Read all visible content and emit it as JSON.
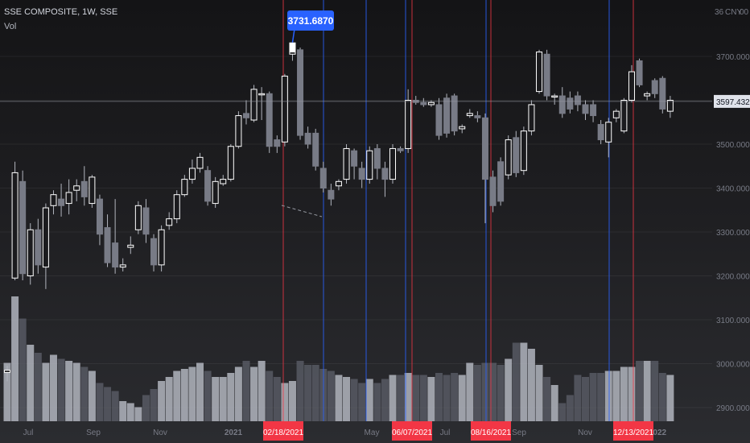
{
  "header": {
    "symbol_title": "SSE COMPOSITE, 1W, SSE",
    "volume_label": "Vol"
  },
  "price_axis": {
    "currency": "CNY",
    "currency_prefix": "36",
    "currency_suffix": "00",
    "ticks": [
      "3700.0000",
      "3600.0000",
      "3500.0000",
      "3400.0000",
      "3300.0000",
      "3200.0000",
      "3100.0000",
      "3000.0000",
      "2900.0000"
    ],
    "crosshair_value": "3597.4321"
  },
  "peak_tooltip": "3731.6870",
  "time_axis": {
    "labels": [
      "Jul",
      "Sep",
      "Nov",
      "2021",
      "May",
      "Jul",
      "Sep",
      "Nov",
      "2022"
    ],
    "date_tags": [
      "02/18/2021",
      "06/07/2021",
      "08/16/2021",
      "12/13/2021"
    ]
  },
  "colors": {
    "background": "#161618",
    "candle_up": "#ffffff",
    "candle_down": "#787b86",
    "wick": "#b2b5be",
    "volume_up": "#b2b5be",
    "volume_down": "#5d606b",
    "blue_line": "#2962ff",
    "red_line": "#f23645",
    "date_tag": "#f23645",
    "tooltip": "#2962ff"
  },
  "chart_data": {
    "type": "candlestick",
    "title": "SSE COMPOSITE, 1W, SSE",
    "ylim": [
      2880,
      3760
    ],
    "peak": 3731.687,
    "crosshair": 3597.4321,
    "series": [
      {
        "d": "Jun 2020",
        "o": 2980,
        "c": 2985,
        "h": 2995,
        "l": 2960
      },
      {
        "d": "Jul 2020",
        "o": 3195,
        "c": 3435,
        "h": 3460,
        "l": 3190
      },
      {
        "d": "Jul 2020",
        "o": 3415,
        "c": 3205,
        "h": 3440,
        "l": 3190
      },
      {
        "d": "Jul 2020",
        "o": 3200,
        "c": 3305,
        "h": 3320,
        "l": 3180
      },
      {
        "d": "Jul 2020",
        "o": 3305,
        "c": 3225,
        "h": 3330,
        "l": 3205
      },
      {
        "d": "Jul 2020",
        "o": 3220,
        "c": 3355,
        "h": 3365,
        "l": 3170
      },
      {
        "d": "Aug 2020",
        "o": 3360,
        "c": 3385,
        "h": 3395,
        "l": 3340
      },
      {
        "d": "Aug 2020",
        "o": 3375,
        "c": 3360,
        "h": 3410,
        "l": 3335
      },
      {
        "d": "Aug 2020",
        "o": 3365,
        "c": 3390,
        "h": 3420,
        "l": 3340
      },
      {
        "d": "Aug 2020",
        "o": 3395,
        "c": 3405,
        "h": 3420,
        "l": 3370
      },
      {
        "d": "Sep 2020",
        "o": 3415,
        "c": 3380,
        "h": 3450,
        "l": 3360
      },
      {
        "d": "Sep 2020",
        "o": 3365,
        "c": 3425,
        "h": 3430,
        "l": 3355
      },
      {
        "d": "Sep 2020",
        "o": 3375,
        "c": 3295,
        "h": 3385,
        "l": 3270
      },
      {
        "d": "Sep 2020",
        "o": 3310,
        "c": 3230,
        "h": 3340,
        "l": 3220
      },
      {
        "d": "Oct 2020",
        "o": 3275,
        "c": 3220,
        "h": 3375,
        "l": 3205
      },
      {
        "d": "Oct 2020",
        "o": 3220,
        "c": 3225,
        "h": 3240,
        "l": 3210
      },
      {
        "d": "Oct 2020",
        "o": 3265,
        "c": 3270,
        "h": 3290,
        "l": 3250
      },
      {
        "d": "Oct 2020",
        "o": 3305,
        "c": 3360,
        "h": 3370,
        "l": 3295
      },
      {
        "d": "Nov 2020",
        "o": 3355,
        "c": 3295,
        "h": 3375,
        "l": 3275
      },
      {
        "d": "Nov 2020",
        "o": 3285,
        "c": 3225,
        "h": 3295,
        "l": 3210
      },
      {
        "d": "Nov 2020",
        "o": 3225,
        "c": 3305,
        "h": 3315,
        "l": 3210
      },
      {
        "d": "Nov 2020",
        "o": 3315,
        "c": 3330,
        "h": 3345,
        "l": 3305
      },
      {
        "d": "Dec 2020",
        "o": 3330,
        "c": 3385,
        "h": 3395,
        "l": 3320
      },
      {
        "d": "Dec 2020",
        "o": 3385,
        "c": 3420,
        "h": 3430,
        "l": 3380
      },
      {
        "d": "Dec 2020",
        "o": 3420,
        "c": 3445,
        "h": 3465,
        "l": 3410
      },
      {
        "d": "Dec 2020",
        "o": 3445,
        "c": 3470,
        "h": 3480,
        "l": 3435
      },
      {
        "d": "Jan 2021",
        "o": 3440,
        "c": 3370,
        "h": 3450,
        "l": 3360
      },
      {
        "d": "Jan 2021",
        "o": 3365,
        "c": 3415,
        "h": 3425,
        "l": 3355
      },
      {
        "d": "Jan 2021",
        "o": 3410,
        "c": 3420,
        "h": 3430,
        "l": 3405
      },
      {
        "d": "Jan 2021",
        "o": 3420,
        "c": 3495,
        "h": 3500,
        "l": 3415
      },
      {
        "d": "Feb 2021",
        "o": 3495,
        "c": 3565,
        "h": 3575,
        "l": 3490
      },
      {
        "d": "Feb 2021",
        "o": 3570,
        "c": 3560,
        "h": 3600,
        "l": 3545
      },
      {
        "d": "Feb 2021",
        "o": 3555,
        "c": 3625,
        "h": 3635,
        "l": 3550
      },
      {
        "d": "Feb 2021",
        "o": 3615,
        "c": 3615,
        "h": 3630,
        "l": 3555
      },
      {
        "d": "Mar 2021",
        "o": 3615,
        "c": 3495,
        "h": 3620,
        "l": 3480
      },
      {
        "d": "Mar 2021",
        "o": 3510,
        "c": 3495,
        "h": 3520,
        "l": 3480
      },
      {
        "d": "Mar 2021",
        "o": 3505,
        "c": 3655,
        "h": 3660,
        "l": 3495
      },
      {
        "d": "Mar 2021",
        "o": 3705,
        "c": 3710,
        "h": 3731.687,
        "l": 3690
      },
      {
        "d": "Mar 2021",
        "o": 3715,
        "c": 3520,
        "h": 3720,
        "l": 3510
      },
      {
        "d": "Apr 2021",
        "o": 3525,
        "c": 3500,
        "h": 3540,
        "l": 3490
      },
      {
        "d": "Apr 2021",
        "o": 3525,
        "c": 3450,
        "h": 3535,
        "l": 3440
      },
      {
        "d": "Apr 2021",
        "o": 3445,
        "c": 3400,
        "h": 3460,
        "l": 3390
      },
      {
        "d": "Apr 2021",
        "o": 3395,
        "c": 3375,
        "h": 3410,
        "l": 3360
      },
      {
        "d": "May 2021",
        "o": 3405,
        "c": 3415,
        "h": 3420,
        "l": 3395
      },
      {
        "d": "May 2021",
        "o": 3420,
        "c": 3490,
        "h": 3500,
        "l": 3410
      },
      {
        "d": "May 2021",
        "o": 3485,
        "c": 3450,
        "h": 3490,
        "l": 3420
      },
      {
        "d": "May 2021",
        "o": 3445,
        "c": 3420,
        "h": 3460,
        "l": 3400
      },
      {
        "d": "May 2021",
        "o": 3420,
        "c": 3485,
        "h": 3495,
        "l": 3410
      },
      {
        "d": "Jun 2021",
        "o": 3490,
        "c": 3445,
        "h": 3500,
        "l": 3420
      },
      {
        "d": "Jun 2021",
        "o": 3445,
        "c": 3420,
        "h": 3460,
        "l": 3380
      },
      {
        "d": "Jun 2021",
        "o": 3420,
        "c": 3490,
        "h": 3500,
        "l": 3410
      },
      {
        "d": "Jun 2021",
        "o": 3490,
        "c": 3485,
        "h": 3495,
        "l": 3480
      },
      {
        "d": "Jul 2021",
        "o": 3490,
        "c": 3600,
        "h": 3625,
        "l": 3480
      },
      {
        "d": "Jul 2021",
        "o": 3600,
        "c": 3595,
        "h": 3610,
        "l": 3590
      },
      {
        "d": "Jul 2021",
        "o": 3595,
        "c": 3590,
        "h": 3605,
        "l": 3585
      },
      {
        "d": "Jul 2021",
        "o": 3590,
        "c": 3595,
        "h": 3600,
        "l": 3585
      },
      {
        "d": "Aug 2021",
        "o": 3590,
        "c": 3520,
        "h": 3605,
        "l": 3510
      },
      {
        "d": "Aug 2021",
        "o": 3605,
        "c": 3525,
        "h": 3615,
        "l": 3515
      },
      {
        "d": "Aug 2021",
        "o": 3610,
        "c": 3530,
        "h": 3615,
        "l": 3520
      },
      {
        "d": "Aug 2021",
        "o": 3535,
        "c": 3540,
        "h": 3545,
        "l": 3525
      },
      {
        "d": "Sep 2021",
        "o": 3565,
        "c": 3570,
        "h": 3580,
        "l": 3560
      },
      {
        "d": "Sep 2021",
        "o": 3565,
        "c": 3560,
        "h": 3575,
        "l": 3550
      },
      {
        "d": "Sep 2021",
        "o": 3560,
        "c": 3420,
        "h": 3570,
        "l": 3320
      },
      {
        "d": "Sep 2021",
        "o": 3425,
        "c": 3360,
        "h": 3440,
        "l": 3345
      },
      {
        "d": "Oct 2021",
        "o": 3460,
        "c": 3370,
        "h": 3470,
        "l": 3360
      },
      {
        "d": "Oct 2021",
        "o": 3430,
        "c": 3510,
        "h": 3520,
        "l": 3420
      },
      {
        "d": "Oct 2021",
        "o": 3515,
        "c": 3435,
        "h": 3530,
        "l": 3425
      },
      {
        "d": "Oct 2021",
        "o": 3440,
        "c": 3530,
        "h": 3540,
        "l": 3430
      },
      {
        "d": "Nov 2021",
        "o": 3530,
        "c": 3590,
        "h": 3600,
        "l": 3520
      },
      {
        "d": "Nov 2021",
        "o": 3620,
        "c": 3710,
        "h": 3715,
        "l": 3615
      },
      {
        "d": "Nov 2021",
        "o": 3705,
        "c": 3610,
        "h": 3715,
        "l": 3600
      },
      {
        "d": "Nov 2021",
        "o": 3610,
        "c": 3610,
        "h": 3615,
        "l": 3590
      },
      {
        "d": "Dec 2021",
        "o": 3610,
        "c": 3570,
        "h": 3630,
        "l": 3560
      },
      {
        "d": "Dec 2021",
        "o": 3605,
        "c": 3580,
        "h": 3620,
        "l": 3570
      },
      {
        "d": "Dec 2021",
        "o": 3610,
        "c": 3590,
        "h": 3620,
        "l": 3575
      },
      {
        "d": "Dec 2021",
        "o": 3590,
        "c": 3570,
        "h": 3600,
        "l": 3555
      },
      {
        "d": "Dec 2021",
        "o": 3590,
        "c": 3565,
        "h": 3600,
        "l": 3550
      },
      {
        "d": "Jan 2022",
        "o": 3545,
        "c": 3510,
        "h": 3555,
        "l": 3500
      },
      {
        "d": "Jan 2022",
        "o": 3505,
        "c": 3550,
        "h": 3560,
        "l": 3470
      },
      {
        "d": "Jan 2022",
        "o": 3560,
        "c": 3575,
        "h": 3580,
        "l": 3550
      },
      {
        "d": "Jan 2022",
        "o": 3530,
        "c": 3600,
        "h": 3605,
        "l": 3525
      },
      {
        "d": "Jan 2022",
        "o": 3600,
        "c": 3665,
        "h": 3680,
        "l": 3595
      },
      {
        "d": "Feb 2022",
        "o": 3690,
        "c": 3635,
        "h": 3695,
        "l": 3630
      },
      {
        "d": "Feb 2022",
        "o": 3610,
        "c": 3615,
        "h": 3620,
        "l": 3600
      },
      {
        "d": "Feb 2022",
        "o": 3645,
        "c": 3615,
        "h": 3650,
        "l": 3605
      },
      {
        "d": "Feb 2022",
        "o": 3650,
        "c": 3580,
        "h": 3655,
        "l": 3570
      },
      {
        "d": "Mar 2022",
        "o": 3575,
        "c": 3600,
        "h": 3610,
        "l": 3560
      }
    ],
    "volume": [
      0.29,
      0.62,
      0.51,
      0.38,
      0.34,
      0.29,
      0.33,
      0.31,
      0.3,
      0.29,
      0.27,
      0.25,
      0.19,
      0.17,
      0.15,
      0.1,
      0.09,
      0.07,
      0.13,
      0.16,
      0.2,
      0.22,
      0.25,
      0.26,
      0.27,
      0.29,
      0.25,
      0.22,
      0.22,
      0.24,
      0.27,
      0.3,
      0.27,
      0.3,
      0.25,
      0.22,
      0.19,
      0.2,
      0.3,
      0.28,
      0.28,
      0.26,
      0.25,
      0.23,
      0.22,
      0.21,
      0.19,
      0.21,
      0.19,
      0.21,
      0.23,
      0.23,
      0.24,
      0.23,
      0.23,
      0.22,
      0.24,
      0.23,
      0.24,
      0.23,
      0.29,
      0.28,
      0.29,
      0.29,
      0.28,
      0.31,
      0.39,
      0.39,
      0.36,
      0.28,
      0.22,
      0.18,
      0.09,
      0.13,
      0.23,
      0.22,
      0.24,
      0.24,
      0.25,
      0.25,
      0.27,
      0.27,
      0.3,
      0.3,
      0.3,
      0.24,
      0.23
    ]
  }
}
